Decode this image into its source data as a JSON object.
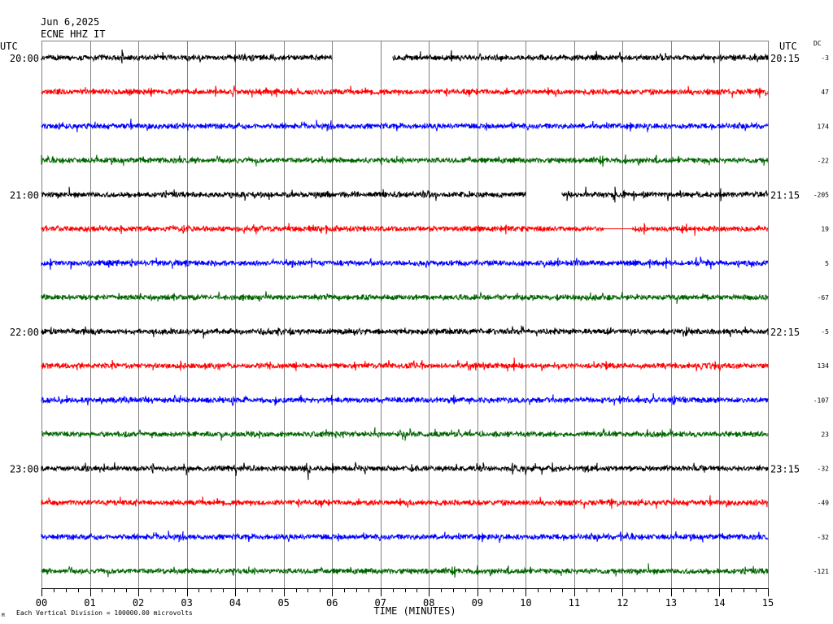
{
  "header": {
    "date": "Jun 6,2025",
    "station": "ECNE HHZ IT",
    "left_tz": "UTC",
    "right_tz": "UTC",
    "dc_label": "DC"
  },
  "footer": {
    "note": "Each Vertical Division = 100000.00 microvolts",
    "corner_mark": "M"
  },
  "chart_data": {
    "type": "line",
    "title": "",
    "xlabel": "TIME (MINUTES)",
    "ylabel": "",
    "x_ticks": [
      "00",
      "01",
      "02",
      "03",
      "04",
      "05",
      "06",
      "07",
      "08",
      "09",
      "10",
      "11",
      "12",
      "13",
      "14",
      "15"
    ],
    "xlim": [
      0,
      15
    ],
    "grid": true,
    "minor_ticks_per_minute": 4,
    "colors": [
      "#000000",
      "#ff0000",
      "#0000ff",
      "#006400"
    ],
    "left_time_labels": [
      {
        "row": 0,
        "text": "20:00"
      },
      {
        "row": 4,
        "text": "21:00"
      },
      {
        "row": 8,
        "text": "22:00"
      },
      {
        "row": 12,
        "text": "23:00"
      }
    ],
    "right_time_labels": [
      {
        "row": 0,
        "text": "20:15"
      },
      {
        "row": 4,
        "text": "21:15"
      },
      {
        "row": 8,
        "text": "22:15"
      },
      {
        "row": 12,
        "text": "23:15"
      }
    ],
    "dc_offsets": [
      "-3",
      "47",
      "174",
      "-22",
      "-205",
      "19",
      "5",
      "-67",
      "-5",
      "134",
      "-107",
      "23",
      "-32",
      "-49",
      "-32",
      "-121"
    ],
    "gaps": [
      {
        "row": 0,
        "start_min": 6.0,
        "end_min": 7.25
      },
      {
        "row": 4,
        "start_min": 10.0,
        "end_min": 10.75
      }
    ],
    "flat_segments": [
      {
        "row": 5,
        "start_min": 11.6,
        "end_min": 12.2
      }
    ]
  }
}
